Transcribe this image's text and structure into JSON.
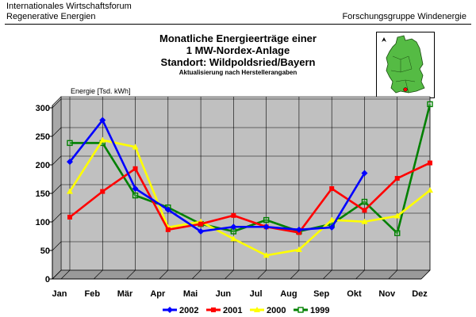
{
  "header": {
    "left_line1": "Internationales Wirtschaftsforum",
    "left_line2": "Regenerative Energien",
    "right": "Forschungsgruppe Windenergie"
  },
  "colors": {
    "wall": "#c0c0c0",
    "floor": "#9a9a9a",
    "map_fill": "#55bb44",
    "map_marker": "#ff0000"
  },
  "chart_data": {
    "type": "line",
    "title_lines": [
      "Monatliche Energieerträge einer",
      "1 MW-Nordex-Anlage",
      "Standort: Wildpoldsried/Bayern"
    ],
    "subtitle": "Aktualisierung nach Herstellerangaben",
    "ylabel": "Energie [Tsd. kWh]",
    "xlabel": "",
    "ylim": [
      0,
      300
    ],
    "yticks": [
      "0",
      "50",
      "100",
      "150",
      "200",
      "250",
      "300"
    ],
    "categories": [
      "Jan",
      "Feb",
      "Mär",
      "Apr",
      "Mai",
      "Jun",
      "Jul",
      "Aug",
      "Sep",
      "Okt",
      "Nov",
      "Dez"
    ],
    "grid": true,
    "legend_position": "bottom",
    "series": [
      {
        "name": "2002",
        "color": "#0000ff",
        "marker": "diamond",
        "values": [
          197,
          270,
          150,
          113,
          75,
          83,
          83,
          78,
          82,
          177,
          null,
          null
        ]
      },
      {
        "name": "2001",
        "color": "#ff0000",
        "marker": "square",
        "values": [
          100,
          145,
          185,
          78,
          88,
          103,
          83,
          73,
          150,
          112,
          168,
          195
        ]
      },
      {
        "name": "2000",
        "color": "#ffff00",
        "marker": "triangle",
        "values": [
          145,
          235,
          223,
          82,
          92,
          62,
          33,
          43,
          95,
          92,
          102,
          147
        ]
      },
      {
        "name": "1999",
        "color": "#008000",
        "marker": "square-open",
        "values": [
          230,
          230,
          138,
          117,
          88,
          75,
          95,
          75,
          88,
          127,
          72,
          298
        ]
      }
    ]
  }
}
